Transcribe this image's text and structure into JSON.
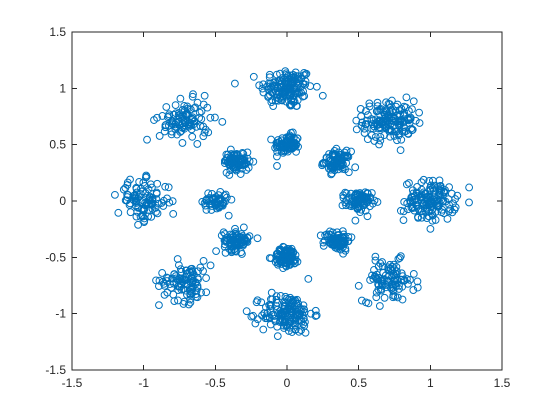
{
  "chart_data": {
    "type": "scatter",
    "title": "",
    "xlabel": "",
    "ylabel": "",
    "xlim": [
      -1.5,
      1.5
    ],
    "ylim": [
      -1.5,
      1.5
    ],
    "grid": false,
    "box": true,
    "marker": "circle-open",
    "color": "#0072BD",
    "x_ticks": [
      "-1.5",
      "-1",
      "-0.5",
      "0",
      "0.5",
      "1",
      "1.5"
    ],
    "y_ticks": [
      "-1.5",
      "-1",
      "-0.5",
      "0",
      "0.5",
      "1",
      "1.5"
    ],
    "clusters": [
      {
        "center": [
          0.0,
          1.0
        ],
        "spread": 0.09,
        "count": 150
      },
      {
        "center": [
          0.0,
          0.5
        ],
        "spread": 0.045,
        "count": 85
      },
      {
        "center": [
          0.71,
          0.71
        ],
        "spread": 0.09,
        "count": 150
      },
      {
        "center": [
          0.35,
          0.35
        ],
        "spread": 0.045,
        "count": 85
      },
      {
        "center": [
          1.0,
          0.0
        ],
        "spread": 0.09,
        "count": 150
      },
      {
        "center": [
          0.5,
          0.0
        ],
        "spread": 0.045,
        "count": 85
      },
      {
        "center": [
          0.71,
          -0.71
        ],
        "spread": 0.09,
        "count": 100
      },
      {
        "center": [
          0.35,
          -0.35
        ],
        "spread": 0.045,
        "count": 85
      },
      {
        "center": [
          0.0,
          -1.0
        ],
        "spread": 0.09,
        "count": 150
      },
      {
        "center": [
          0.0,
          -0.5
        ],
        "spread": 0.045,
        "count": 85
      },
      {
        "center": [
          -0.71,
          -0.71
        ],
        "spread": 0.09,
        "count": 100
      },
      {
        "center": [
          -0.35,
          -0.35
        ],
        "spread": 0.045,
        "count": 85
      },
      {
        "center": [
          -1.0,
          0.0
        ],
        "spread": 0.09,
        "count": 100
      },
      {
        "center": [
          -0.5,
          0.0
        ],
        "spread": 0.045,
        "count": 60
      },
      {
        "center": [
          -0.71,
          0.71
        ],
        "spread": 0.09,
        "count": 100
      },
      {
        "center": [
          -0.35,
          0.35
        ],
        "spread": 0.045,
        "count": 85
      }
    ]
  }
}
